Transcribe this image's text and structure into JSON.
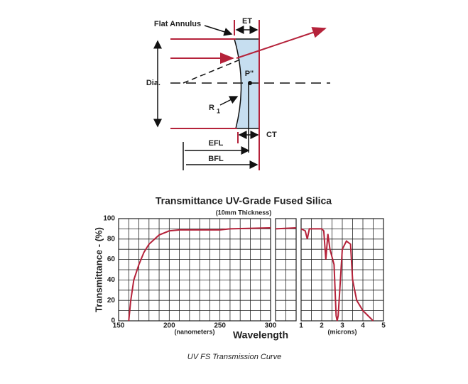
{
  "diagram": {
    "labels": {
      "flat_annulus": "Flat Annulus",
      "et": "ET",
      "dia": "Dia.",
      "p": "P\"",
      "r": "R",
      "r_sub": "1",
      "efl": "EFL",
      "bfl": "BFL",
      "ct": "CT"
    }
  },
  "chart_data": {
    "type": "line",
    "title": "Transmittance UV-Grade Fused Silica",
    "subtitle": "(10mm Thickness)",
    "ylabel": "Transmittance - (%)",
    "xlabel": "Wavelength",
    "color": "#b5223a",
    "ylim": [
      0,
      100
    ],
    "yticks": [
      0,
      20,
      40,
      60,
      80,
      100
    ],
    "ygrid": [
      0,
      10,
      20,
      30,
      40,
      50,
      60,
      70,
      80,
      90,
      100
    ],
    "panels": [
      {
        "unit": "(nanometers)",
        "xlim": [
          150,
          300
        ],
        "xticks": [
          150,
          200,
          250,
          300
        ],
        "xgrid": [
          150,
          160,
          170,
          180,
          190,
          200,
          210,
          220,
          230,
          240,
          250,
          260,
          270,
          280,
          290,
          300
        ],
        "x": [
          160,
          162,
          165,
          170,
          175,
          180,
          190,
          200,
          210,
          250,
          260,
          300
        ],
        "values": [
          0,
          20,
          40,
          55,
          67,
          75,
          84,
          88,
          89,
          89,
          90,
          91
        ]
      },
      {
        "xlim": [
          0,
          2
        ],
        "xgrid": [
          0,
          1,
          2
        ],
        "x": [
          0,
          2
        ],
        "values": [
          90,
          91
        ]
      },
      {
        "unit": "(microns)",
        "xlim": [
          1,
          5
        ],
        "xticks": [
          1,
          2,
          3,
          4,
          5
        ],
        "xgrid": [
          1,
          1.5,
          2,
          2.5,
          3,
          3.5,
          4,
          4.5,
          5
        ],
        "x": [
          1.0,
          1.2,
          1.3,
          1.4,
          2.0,
          2.1,
          2.2,
          2.3,
          2.4,
          2.6,
          2.7,
          2.75,
          2.8,
          3.0,
          3.2,
          3.4,
          3.5,
          3.7,
          4.0,
          4.5
        ],
        "values": [
          90,
          88,
          80,
          90,
          90,
          88,
          60,
          85,
          70,
          55,
          5,
          0,
          5,
          70,
          78,
          75,
          40,
          20,
          10,
          0
        ]
      }
    ]
  },
  "caption": "UV FS Transmission Curve"
}
